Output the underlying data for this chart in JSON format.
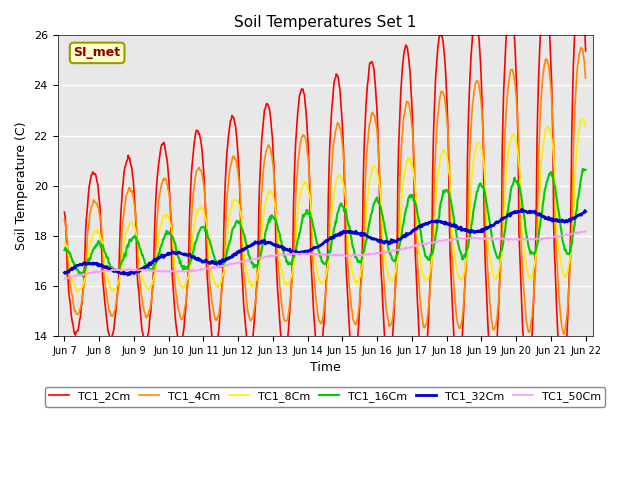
{
  "title": "Soil Temperatures Set 1",
  "xlabel": "Time",
  "ylabel": "Soil Temperature (C)",
  "ylim": [
    14,
    26
  ],
  "xtick_labels": [
    "Jun 7",
    "Jun 8",
    "Jun 9",
    "Jun 10",
    "Jun 11",
    "Jun 12",
    "Jun 13",
    "Jun 14",
    "Jun 15",
    "Jun 16",
    "Jun 17",
    "Jun 18",
    "Jun 19",
    "Jun 20",
    "Jun 21",
    "Jun 22"
  ],
  "ytick_values": [
    14,
    16,
    18,
    20,
    22,
    24,
    26
  ],
  "annotation_text": "SI_met",
  "bg_color": "#e8e8e8",
  "series_colors": [
    "#ff0000",
    "#ff8800",
    "#ffee00",
    "#00cc00",
    "#0000cc",
    "#ff99ff"
  ],
  "series_labels": [
    "TC1_2Cm",
    "TC1_4Cm",
    "TC1_8Cm",
    "TC1_16Cm",
    "TC1_32Cm",
    "TC1_50Cm"
  ],
  "series_linewidths": [
    1.2,
    1.2,
    1.2,
    1.5,
    2.0,
    1.2
  ]
}
